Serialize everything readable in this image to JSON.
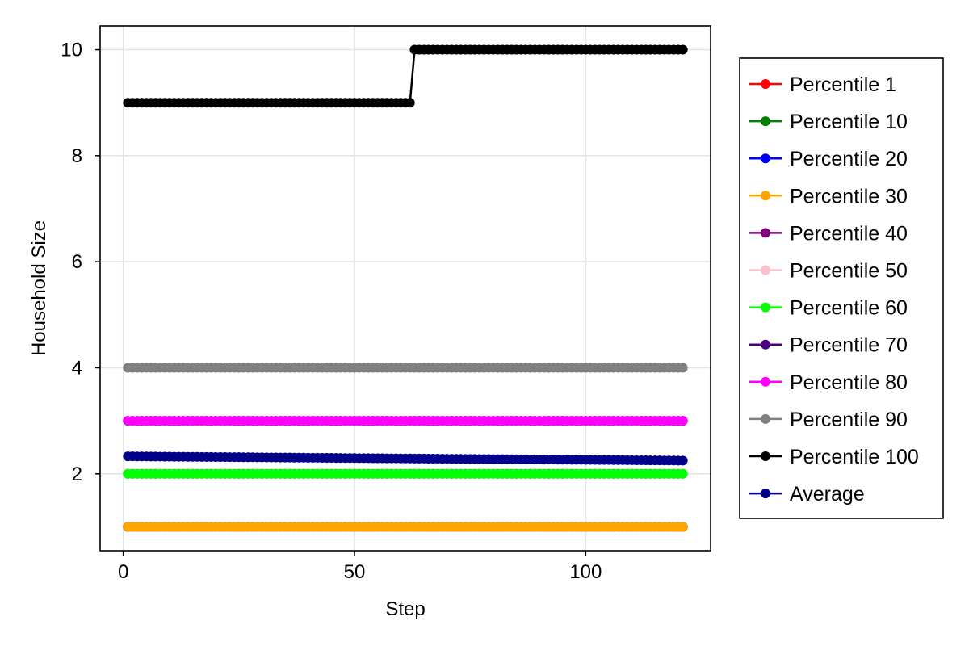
{
  "chart_data": {
    "type": "line",
    "title": "",
    "xlabel": "Step",
    "ylabel": "Household Size",
    "xlim": [
      -5,
      127
    ],
    "ylim": [
      0.55,
      10.45
    ],
    "xticks": [
      0,
      50,
      100
    ],
    "yticks": [
      2,
      4,
      6,
      8,
      10
    ],
    "x_start": 1,
    "x_end": 121,
    "grid": true,
    "legend_position": "right",
    "series": [
      {
        "name": "Percentile 1",
        "color": "#ff0000",
        "values": [
          {
            "x_from": 1,
            "x_to": 121,
            "y": 1
          }
        ]
      },
      {
        "name": "Percentile 10",
        "color": "#008000",
        "values": [
          {
            "x_from": 1,
            "x_to": 121,
            "y": 1
          }
        ]
      },
      {
        "name": "Percentile 20",
        "color": "#0000ff",
        "values": [
          {
            "x_from": 1,
            "x_to": 121,
            "y": 1
          }
        ]
      },
      {
        "name": "Percentile 30",
        "color": "#ffa500",
        "values": [
          {
            "x_from": 1,
            "x_to": 121,
            "y": 1
          }
        ]
      },
      {
        "name": "Percentile 40",
        "color": "#800080",
        "values": [
          {
            "x_from": 1,
            "x_to": 121,
            "y": 2
          }
        ]
      },
      {
        "name": "Percentile 50",
        "color": "#ffc0cb",
        "values": [
          {
            "x_from": 1,
            "x_to": 121,
            "y": 2
          }
        ]
      },
      {
        "name": "Percentile 60",
        "color": "#00ff00",
        "values": [
          {
            "x_from": 1,
            "x_to": 121,
            "y": 2
          }
        ]
      },
      {
        "name": "Percentile 70",
        "color": "#4b0082",
        "values": [
          {
            "x_from": 1,
            "x_to": 121,
            "y": 3
          }
        ]
      },
      {
        "name": "Percentile 80",
        "color": "#ff00ff",
        "values": [
          {
            "x_from": 1,
            "x_to": 121,
            "y": 3
          }
        ]
      },
      {
        "name": "Percentile 90",
        "color": "#808080",
        "values": [
          {
            "x_from": 1,
            "x_to": 121,
            "y": 4
          }
        ]
      },
      {
        "name": "Percentile 100",
        "color": "#000000",
        "values": [
          {
            "x_from": 1,
            "x_to": 62,
            "y": 9
          },
          {
            "x_from": 63,
            "x_to": 121,
            "y": 10
          }
        ]
      },
      {
        "name": "Average",
        "color": "#00008b",
        "values": [
          {
            "x_from": 1,
            "x_to": 121,
            "y_from": 2.33,
            "y_to": 2.25
          }
        ]
      }
    ]
  }
}
